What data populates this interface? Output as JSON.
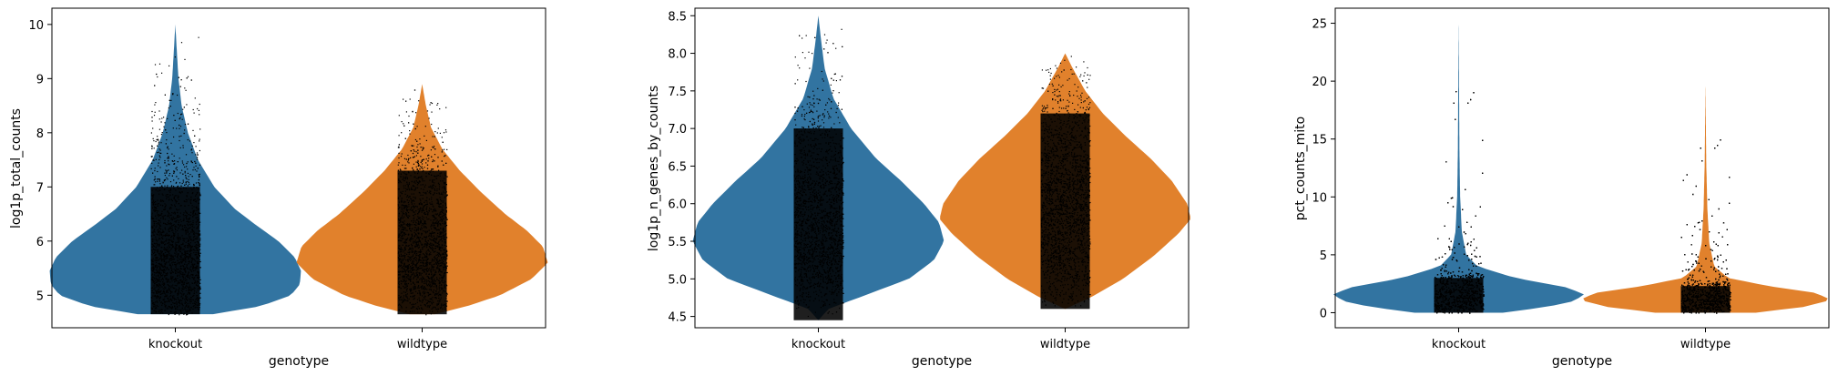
{
  "chart_data": [
    {
      "type": "violin",
      "xlabel": "genotype",
      "ylabel": "log1p_total_counts",
      "categories": [
        "knockout",
        "wildtype"
      ],
      "ylim": [
        4.4,
        10.3
      ],
      "yticks": [
        "5",
        "6",
        "7",
        "8",
        "9",
        "10"
      ],
      "grid": false,
      "series": [
        {
          "category": "knockout",
          "color": "#3274a1",
          "min": 4.65,
          "max": 10.0,
          "profile": [
            [
              4.65,
              0.3
            ],
            [
              4.8,
              0.68
            ],
            [
              5.0,
              0.92
            ],
            [
              5.2,
              0.99
            ],
            [
              5.45,
              1.0
            ],
            [
              5.7,
              0.95
            ],
            [
              6.0,
              0.82
            ],
            [
              6.3,
              0.64
            ],
            [
              6.6,
              0.47
            ],
            [
              7.0,
              0.31
            ],
            [
              7.5,
              0.18
            ],
            [
              8.0,
              0.1
            ],
            [
              8.5,
              0.05
            ],
            [
              9.0,
              0.025
            ],
            [
              9.5,
              0.012
            ],
            [
              10.0,
              0.0
            ]
          ]
        },
        {
          "category": "wildtype",
          "color": "#e1812c",
          "min": 4.65,
          "max": 8.9,
          "profile": [
            [
              4.65,
              0.1
            ],
            [
              4.8,
              0.36
            ],
            [
              5.0,
              0.62
            ],
            [
              5.3,
              0.87
            ],
            [
              5.6,
              1.0
            ],
            [
              5.9,
              0.96
            ],
            [
              6.2,
              0.83
            ],
            [
              6.5,
              0.66
            ],
            [
              6.9,
              0.47
            ],
            [
              7.3,
              0.3
            ],
            [
              7.7,
              0.16
            ],
            [
              8.1,
              0.07
            ],
            [
              8.5,
              0.03
            ],
            [
              8.9,
              0.0
            ]
          ]
        }
      ]
    },
    {
      "type": "violin",
      "xlabel": "genotype",
      "ylabel": "log1p_n_genes_by_counts",
      "categories": [
        "knockout",
        "wildtype"
      ],
      "ylim": [
        4.35,
        8.6
      ],
      "yticks": [
        "4.5",
        "5.0",
        "5.5",
        "6.0",
        "6.5",
        "7.0",
        "7.5",
        "8.0",
        "8.5"
      ],
      "grid": false,
      "series": [
        {
          "category": "knockout",
          "color": "#3274a1",
          "min": 4.45,
          "max": 8.5,
          "profile": [
            [
              4.45,
              0.0
            ],
            [
              4.6,
              0.08
            ],
            [
              4.8,
              0.4
            ],
            [
              5.0,
              0.72
            ],
            [
              5.25,
              0.92
            ],
            [
              5.5,
              1.0
            ],
            [
              5.75,
              0.96
            ],
            [
              6.0,
              0.84
            ],
            [
              6.3,
              0.66
            ],
            [
              6.6,
              0.46
            ],
            [
              7.0,
              0.26
            ],
            [
              7.4,
              0.12
            ],
            [
              7.8,
              0.05
            ],
            [
              8.2,
              0.02
            ],
            [
              8.5,
              0.0
            ]
          ]
        },
        {
          "category": "wildtype",
          "color": "#e1812c",
          "min": 4.6,
          "max": 8.0,
          "profile": [
            [
              4.6,
              0.0
            ],
            [
              4.75,
              0.2
            ],
            [
              5.0,
              0.46
            ],
            [
              5.3,
              0.7
            ],
            [
              5.6,
              0.9
            ],
            [
              5.8,
              1.0
            ],
            [
              6.0,
              0.97
            ],
            [
              6.3,
              0.85
            ],
            [
              6.6,
              0.68
            ],
            [
              6.9,
              0.48
            ],
            [
              7.2,
              0.3
            ],
            [
              7.5,
              0.16
            ],
            [
              7.8,
              0.06
            ],
            [
              8.0,
              0.0
            ]
          ]
        }
      ]
    },
    {
      "type": "violin",
      "xlabel": "genotype",
      "ylabel": "pct_counts_mito",
      "categories": [
        "knockout",
        "wildtype"
      ],
      "ylim": [
        -1.3,
        26.3
      ],
      "yticks": [
        "0",
        "5",
        "10",
        "15",
        "20",
        "25"
      ],
      "grid": false,
      "series": [
        {
          "category": "knockout",
          "color": "#3274a1",
          "min": 0,
          "max": 25.2,
          "profile": [
            [
              0,
              0.35
            ],
            [
              0.5,
              0.7
            ],
            [
              1.0,
              0.92
            ],
            [
              1.6,
              1.0
            ],
            [
              2.2,
              0.85
            ],
            [
              3.0,
              0.45
            ],
            [
              4.0,
              0.15
            ],
            [
              5.0,
              0.06
            ],
            [
              7.0,
              0.025
            ],
            [
              10.0,
              0.012
            ],
            [
              14.0,
              0.006
            ],
            [
              20.0,
              0.003
            ],
            [
              25.2,
              0.0
            ]
          ]
        },
        {
          "category": "wildtype",
          "color": "#e1812c",
          "min": 0,
          "max": 19.8,
          "profile": [
            [
              0,
              0.4
            ],
            [
              0.5,
              0.78
            ],
            [
              1.1,
              1.0
            ],
            [
              1.7,
              0.88
            ],
            [
              2.3,
              0.5
            ],
            [
              3.0,
              0.18
            ],
            [
              4.0,
              0.07
            ],
            [
              6.0,
              0.03
            ],
            [
              9.0,
              0.015
            ],
            [
              13.0,
              0.006
            ],
            [
              19.8,
              0.0
            ]
          ]
        }
      ]
    }
  ]
}
